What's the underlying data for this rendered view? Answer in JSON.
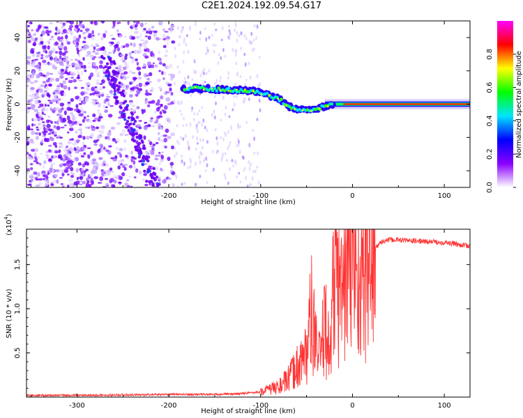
{
  "title": "C2E1.2024.192.09.54.G17",
  "chart_data": [
    {
      "type": "heatmap",
      "xlabel": "Height of straight line (km)",
      "ylabel": "Frequency (Hz)",
      "xlim": [
        -355,
        128
      ],
      "ylim": [
        -50,
        50
      ],
      "xticks": [
        -300,
        -200,
        -100,
        0,
        100
      ],
      "yticks": [
        -40,
        -20,
        0,
        20,
        40
      ],
      "colorbar": {
        "label": "Normalized spectral amplitude",
        "range": [
          0,
          1
        ],
        "ticks": [
          "0.0",
          "0.2",
          "0.4",
          "0.6",
          "0.8"
        ],
        "colors": [
          "#ffffff",
          "#8a00ff",
          "#0000ff",
          "#00e5ff",
          "#00ff00",
          "#ffff00",
          "#ff0000",
          "#ff00ff"
        ]
      },
      "ridge": {
        "x": [
          -185,
          -170,
          -150,
          -130,
          -110,
          -95,
          -80,
          -70,
          -60,
          -50,
          -40,
          -30,
          -20,
          -10,
          0,
          20,
          60,
          100,
          128
        ],
        "y": [
          9,
          9.5,
          9,
          8.5,
          8,
          6,
          3,
          -1,
          -3,
          -4,
          -3,
          -1,
          0,
          0.5,
          1,
          0,
          0,
          0,
          0
        ]
      },
      "noise_band": {
        "x": [
          -355,
          -195
        ]
      },
      "diagonal_streak": {
        "x": [
          -270,
          -215
        ],
        "y": [
          30,
          -50
        ]
      }
    },
    {
      "type": "line",
      "xlabel": "Height of straight line (km)",
      "ylabel": "SNR (10 * v/v)",
      "yscale_label": "(x10",
      "yscale_exp": "4",
      "yscale_close": ")",
      "xlim": [
        -355,
        128
      ],
      "ylim": [
        0,
        1.9
      ],
      "xticks": [
        -300,
        -200,
        -100,
        0,
        100
      ],
      "yticks": [
        0.5,
        1.0,
        1.5
      ],
      "ytick_labels": [
        "0.5",
        "1.0",
        "1.5"
      ],
      "color": "#ff3333",
      "x": [
        -355,
        -300,
        -250,
        -200,
        -150,
        -120,
        -100,
        -80,
        -70,
        -60,
        -50,
        -45,
        -40,
        -35,
        -30,
        -25,
        -20,
        -15,
        -10,
        -5,
        0,
        5,
        10,
        15,
        20,
        30,
        40,
        50,
        60,
        80,
        100,
        120,
        128
      ],
      "y": [
        0.02,
        0.02,
        0.025,
        0.03,
        0.03,
        0.04,
        0.06,
        0.12,
        0.2,
        0.35,
        0.5,
        0.95,
        0.6,
        0.4,
        0.9,
        0.45,
        1.4,
        1.2,
        1.25,
        1.45,
        1.6,
        1.4,
        1.3,
        1.5,
        1.6,
        1.75,
        1.78,
        1.78,
        1.77,
        1.76,
        1.75,
        1.72,
        1.71
      ]
    }
  ]
}
